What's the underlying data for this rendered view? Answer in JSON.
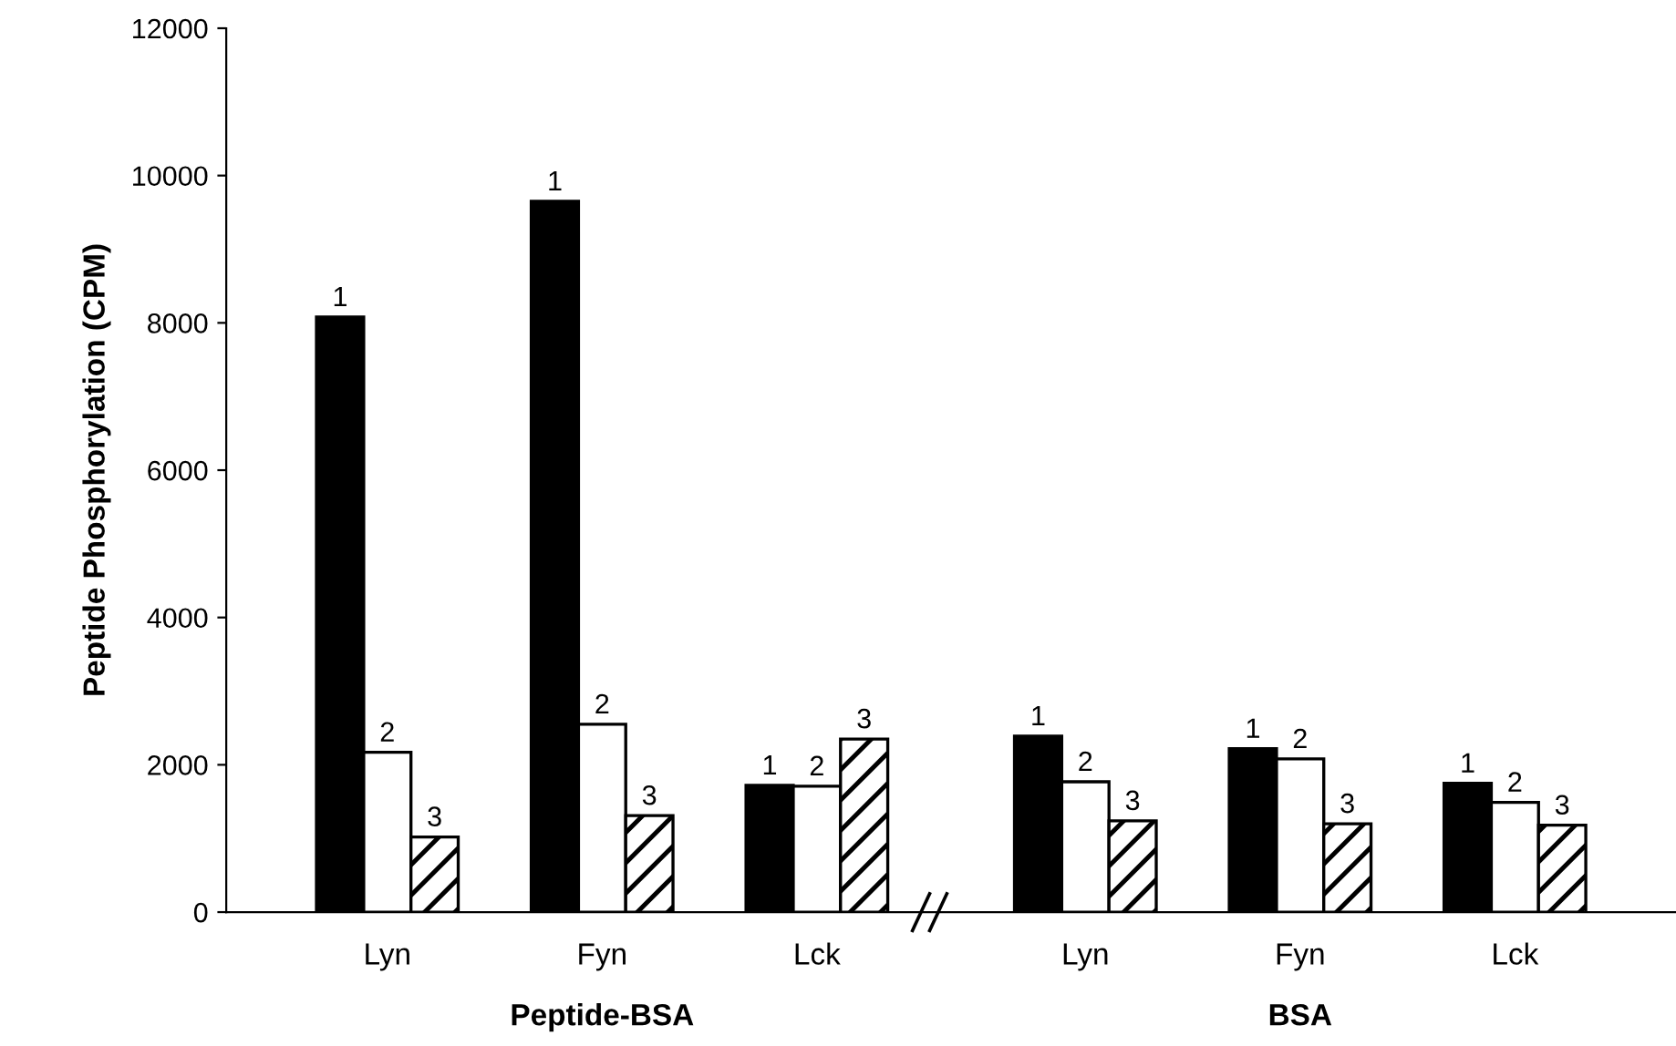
{
  "chart_data": {
    "type": "bar",
    "ylabel": "Peptide Phosphorylation (CPM)",
    "categories": [
      "Lyn",
      "Fyn",
      "Lck",
      "Lyn",
      "Fyn",
      "Lck"
    ],
    "series": [
      {
        "name": "1",
        "color": "#000000",
        "values": [
          8080,
          9650,
          1720,
          2390,
          2220,
          1750
        ]
      },
      {
        "name": "2",
        "color": "#ffffff",
        "values": [
          2170,
          2550,
          1710,
          1770,
          2080,
          1490
        ]
      },
      {
        "name": "3",
        "color": "#000000",
        "values": [
          1020,
          1310,
          2350,
          1240,
          1200,
          1180
        ]
      }
    ],
    "annotations": [
      "Peptide-BSA",
      "BSA"
    ],
    "ylim": [
      0,
      12000
    ],
    "yticks": [
      0,
      2000,
      4000,
      6000,
      8000,
      10000,
      12000
    ],
    "grid": false,
    "legend": false
  }
}
